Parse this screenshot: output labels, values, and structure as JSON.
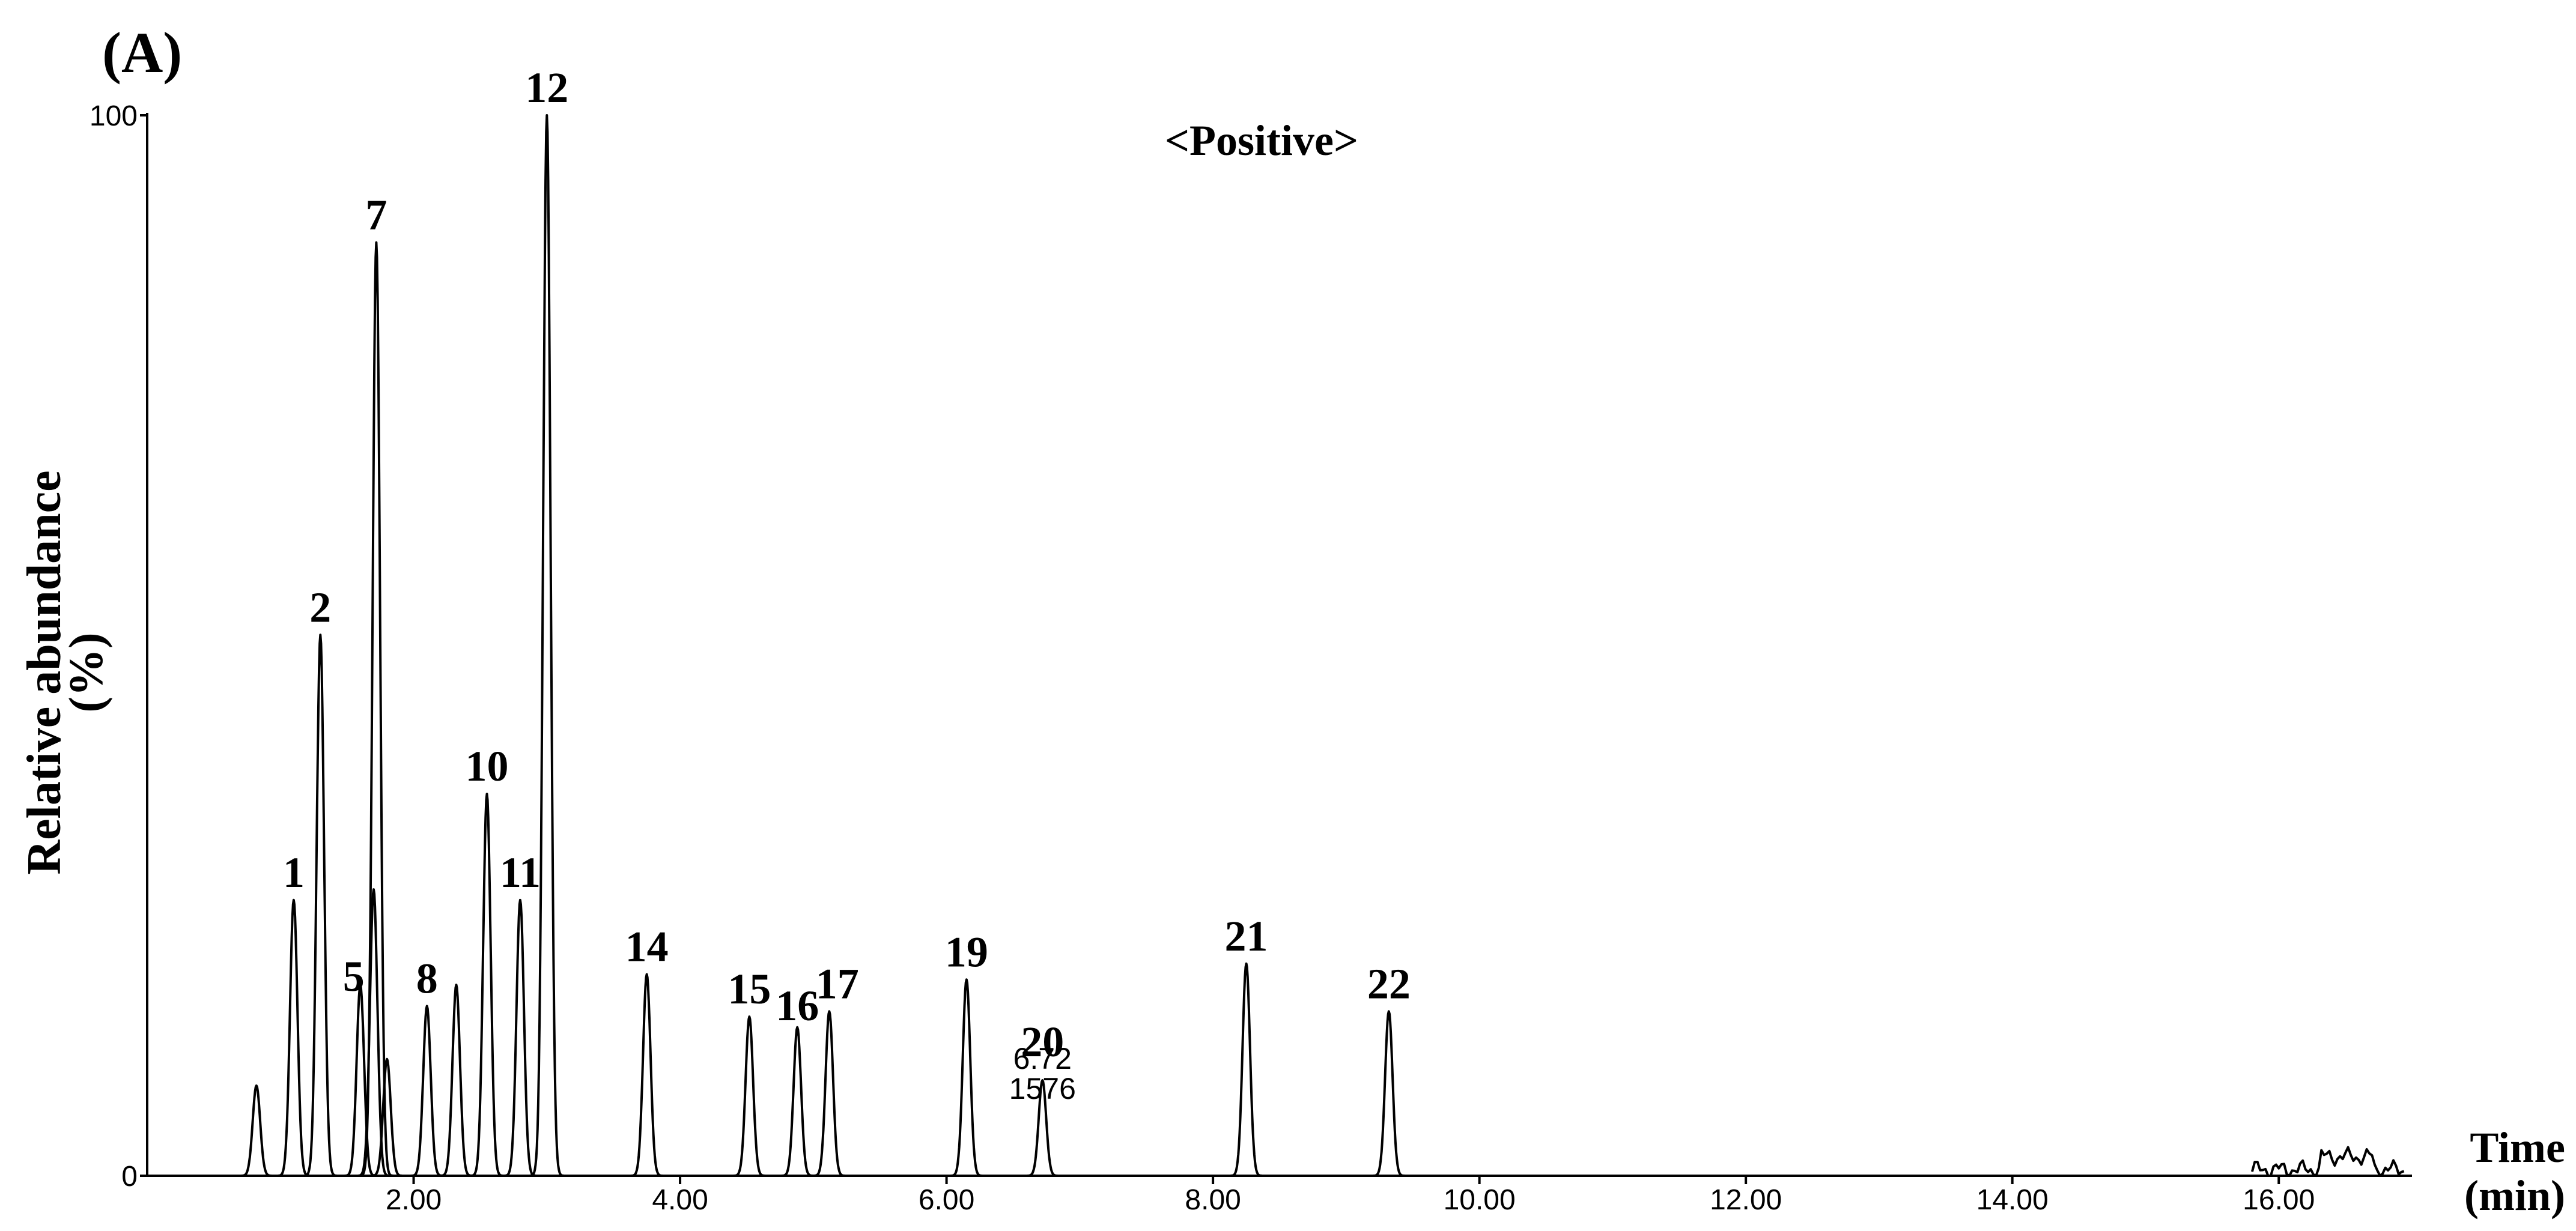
{
  "chart_data": {
    "type": "line",
    "panel_label": "(A)",
    "mode_label": "<Positive>",
    "ylabel_line1": "Relative abundance",
    "ylabel_line2": "(%)",
    "xlabel_line1": "Time",
    "xlabel_line2": "(min)",
    "xlim": [
      0,
      17
    ],
    "ylim": [
      0,
      100
    ],
    "x_ticks": [
      {
        "value": 2,
        "label": "2.00"
      },
      {
        "value": 4,
        "label": "4.00"
      },
      {
        "value": 6,
        "label": "6.00"
      },
      {
        "value": 8,
        "label": "8.00"
      },
      {
        "value": 10,
        "label": "10.00"
      },
      {
        "value": 12,
        "label": "12.00"
      },
      {
        "value": 14,
        "label": "14.00"
      },
      {
        "value": 16,
        "label": "16.00"
      }
    ],
    "y_ticks": [
      {
        "value": 0,
        "label": "0"
      },
      {
        "value": 100,
        "label": "100"
      }
    ],
    "grid": false,
    "peaks": [
      {
        "label": "",
        "rt": 0.82,
        "height": 8.5
      },
      {
        "label": "1",
        "rt": 1.1,
        "height": 26
      },
      {
        "label": "2",
        "rt": 1.3,
        "height": 51
      },
      {
        "label": "5",
        "rt": 1.6,
        "height": 18
      },
      {
        "label": "",
        "rt": 1.7,
        "height": 27
      },
      {
        "label": "7",
        "rt": 1.72,
        "height": 88
      },
      {
        "label": "",
        "rt": 1.8,
        "height": 11
      },
      {
        "label": "8",
        "rt": 2.1,
        "height": 16
      },
      {
        "label": "",
        "rt": 2.32,
        "height": 18
      },
      {
        "label": "10",
        "rt": 2.55,
        "height": 36
      },
      {
        "label": "11",
        "rt": 2.8,
        "height": 26
      },
      {
        "label": "12",
        "rt": 3.0,
        "height": 100
      },
      {
        "label": "14",
        "rt": 3.75,
        "height": 19
      },
      {
        "label": "15",
        "rt": 4.52,
        "height": 15
      },
      {
        "label": "16",
        "rt": 4.88,
        "height": 14
      },
      {
        "label": "17",
        "rt": 5.12,
        "height": 15.5
      },
      {
        "label": "19",
        "rt": 6.15,
        "height": 18.5
      },
      {
        "label": "20",
        "rt": 6.72,
        "height": 9
      },
      {
        "label": "21",
        "rt": 8.25,
        "height": 20
      },
      {
        "label": "22",
        "rt": 9.32,
        "height": 15.5
      }
    ],
    "annotation_rt": "6.72",
    "annotation_value": "1576"
  }
}
